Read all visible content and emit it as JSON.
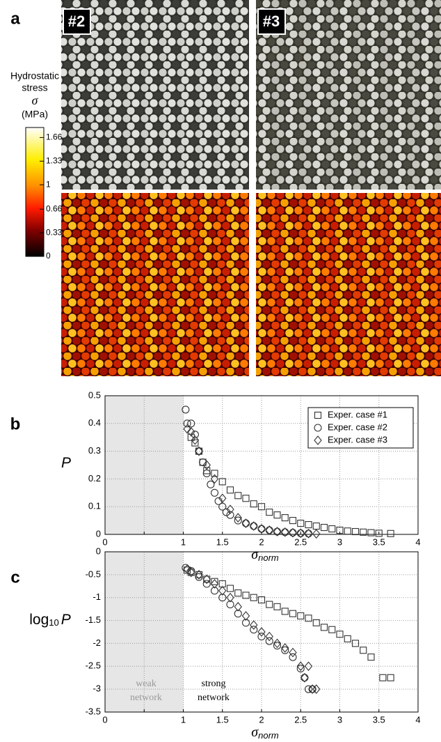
{
  "panel_a": {
    "label": "a",
    "images": [
      "#2",
      "#3"
    ],
    "colorbar": {
      "title": [
        "Hydrostatic",
        "stress",
        "σ",
        "(MPa)"
      ],
      "lim": [
        0,
        1.8
      ],
      "ticks": [
        1.66,
        1.33,
        1,
        0.66,
        0.33,
        0
      ]
    }
  },
  "chart_data": [
    {
      "type": "scatter",
      "label": "b",
      "xlabel": {
        "text": "σ",
        "sub": "norm"
      },
      "ylabel": {
        "text": "",
        "sub": "",
        "tail": "P"
      },
      "xlim": [
        0,
        4
      ],
      "ylim": [
        0,
        0.5
      ],
      "xticks": [
        0,
        0.5,
        1,
        1.5,
        2,
        2.5,
        3,
        3.5,
        4
      ],
      "xtick_labels_shown": [
        0,
        1,
        1.5,
        2,
        2.5,
        3,
        3.5,
        4
      ],
      "yticks": [
        0,
        0.1,
        0.2,
        0.3,
        0.4,
        0.5
      ],
      "grid": true,
      "shaded_region": [
        0,
        1
      ],
      "legend": "upper right",
      "series": [
        {
          "name": "Exper. case #1",
          "marker": "square",
          "color": "#333333",
          "x": [
            1.1,
            1.15,
            1.2,
            1.25,
            1.3,
            1.4,
            1.5,
            1.6,
            1.7,
            1.8,
            1.9,
            2.0,
            2.1,
            2.2,
            2.3,
            2.4,
            2.5,
            2.6,
            2.7,
            2.8,
            2.9,
            3.0,
            3.1,
            3.2,
            3.3,
            3.4,
            3.5,
            3.65
          ],
          "values": [
            0.35,
            0.33,
            0.3,
            0.26,
            0.23,
            0.22,
            0.19,
            0.16,
            0.14,
            0.13,
            0.11,
            0.1,
            0.08,
            0.07,
            0.06,
            0.05,
            0.04,
            0.035,
            0.03,
            0.025,
            0.02,
            0.015,
            0.012,
            0.01,
            0.008,
            0.006,
            0.004,
            0.003
          ]
        },
        {
          "name": "Exper. case #2",
          "marker": "circle",
          "color": "#333333",
          "x": [
            1.03,
            1.05,
            1.1,
            1.15,
            1.2,
            1.25,
            1.3,
            1.35,
            1.4,
            1.45,
            1.5,
            1.55,
            1.6,
            1.7,
            1.8,
            1.9,
            2.0,
            2.1,
            2.2,
            2.3,
            2.4,
            2.5,
            2.6
          ],
          "values": [
            0.45,
            0.4,
            0.4,
            0.36,
            0.3,
            0.26,
            0.22,
            0.18,
            0.15,
            0.12,
            0.1,
            0.08,
            0.07,
            0.05,
            0.04,
            0.03,
            0.02,
            0.015,
            0.01,
            0.008,
            0.006,
            0.004,
            0.003
          ]
        },
        {
          "name": "Exper. case #3",
          "marker": "diamond",
          "color": "#333333",
          "x": [
            1.05,
            1.1,
            1.15,
            1.2,
            1.3,
            1.4,
            1.5,
            1.6,
            1.7,
            1.8,
            1.9,
            2.0,
            2.1,
            2.2,
            2.3,
            2.4,
            2.5,
            2.6,
            2.7
          ],
          "values": [
            0.38,
            0.37,
            0.34,
            0.3,
            0.25,
            0.2,
            0.13,
            0.09,
            0.06,
            0.04,
            0.03,
            0.02,
            0.015,
            0.01,
            0.008,
            0.006,
            0.004,
            0.003,
            0.002
          ]
        }
      ]
    },
    {
      "type": "scatter",
      "label": "c",
      "xlabel": {
        "text": "σ",
        "sub": "norm"
      },
      "ylabel": {
        "text": "log",
        "sub": "10",
        "tail": "P"
      },
      "xlim": [
        0,
        4
      ],
      "ylim": [
        -3.5,
        0
      ],
      "xticks": [
        0,
        0.5,
        1,
        1.5,
        2,
        2.5,
        3,
        3.5,
        4
      ],
      "xtick_labels_shown": [
        0,
        1,
        1.5,
        2,
        2.5,
        3,
        3.5,
        4
      ],
      "yticks": [
        0,
        -0.5,
        -1,
        -1.5,
        -2,
        -2.5,
        -3,
        -3.5
      ],
      "grid": true,
      "shaded_region": [
        0,
        1
      ],
      "annotations": [
        [
          "weak",
          "network"
        ],
        [
          "strong",
          "network"
        ]
      ],
      "series": [
        {
          "name": "Exper. case #1",
          "marker": "square",
          "color": "#333333",
          "x": [
            1.05,
            1.1,
            1.2,
            1.3,
            1.4,
            1.5,
            1.6,
            1.7,
            1.8,
            1.9,
            2.0,
            2.1,
            2.2,
            2.3,
            2.4,
            2.5,
            2.6,
            2.7,
            2.8,
            2.9,
            3.0,
            3.1,
            3.2,
            3.3,
            3.4,
            3.55,
            3.65
          ],
          "values": [
            -0.4,
            -0.45,
            -0.5,
            -0.6,
            -0.65,
            -0.7,
            -0.8,
            -0.9,
            -0.95,
            -1.0,
            -1.05,
            -1.15,
            -1.2,
            -1.3,
            -1.35,
            -1.4,
            -1.45,
            -1.55,
            -1.65,
            -1.7,
            -1.8,
            -1.9,
            -2.0,
            -2.15,
            -2.3,
            -2.75,
            -2.75
          ]
        },
        {
          "name": "Exper. case #2",
          "marker": "circle",
          "color": "#333333",
          "x": [
            1.03,
            1.1,
            1.2,
            1.3,
            1.4,
            1.5,
            1.6,
            1.7,
            1.8,
            1.9,
            2.0,
            2.1,
            2.2,
            2.3,
            2.4,
            2.5,
            2.55,
            2.6,
            2.65
          ],
          "values": [
            -0.35,
            -0.42,
            -0.55,
            -0.7,
            -0.85,
            -1.0,
            -1.15,
            -1.35,
            -1.55,
            -1.7,
            -1.85,
            -1.95,
            -2.05,
            -2.15,
            -2.3,
            -2.55,
            -2.75,
            -3.0,
            -3.0
          ]
        },
        {
          "name": "Exper. case #3",
          "marker": "diamond",
          "color": "#333333",
          "x": [
            1.05,
            1.1,
            1.2,
            1.3,
            1.4,
            1.5,
            1.6,
            1.7,
            1.8,
            1.9,
            2.0,
            2.1,
            2.2,
            2.3,
            2.4,
            2.5,
            2.6,
            2.55,
            2.7,
            2.65
          ],
          "values": [
            -0.38,
            -0.45,
            -0.5,
            -0.6,
            -0.7,
            -0.85,
            -1.0,
            -1.2,
            -1.4,
            -1.6,
            -1.75,
            -1.85,
            -2.0,
            -2.1,
            -2.2,
            -2.5,
            -2.5,
            -2.75,
            -3.0,
            -3.0
          ]
        }
      ]
    }
  ]
}
